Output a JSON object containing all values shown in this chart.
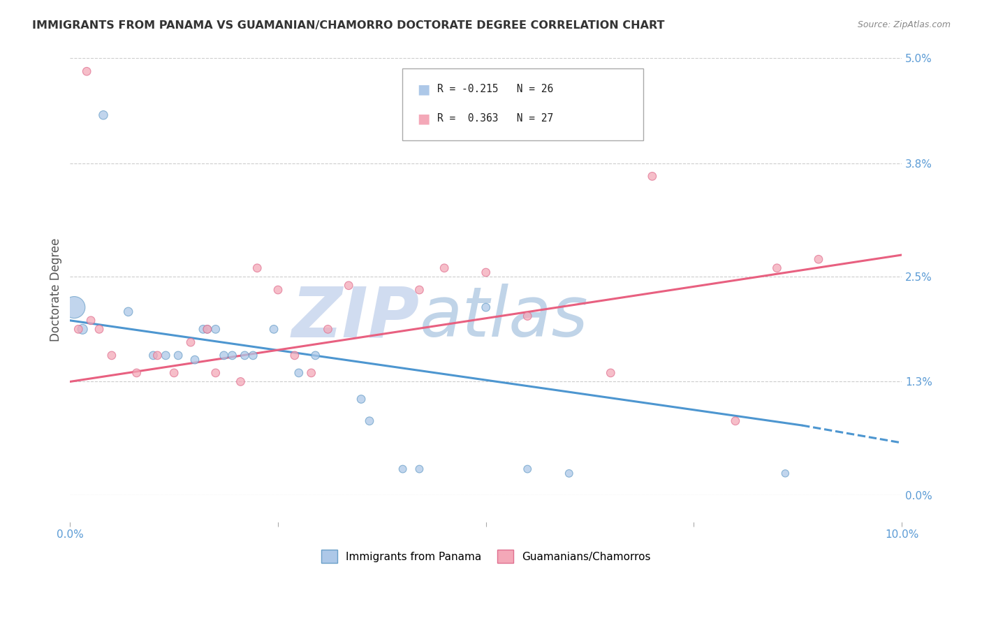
{
  "title": "IMMIGRANTS FROM PANAMA VS GUAMANIAN/CHAMORRO DOCTORATE DEGREE CORRELATION CHART",
  "source": "Source: ZipAtlas.com",
  "ylabel": "Doctorate Degree",
  "y_ticks": [
    0.0,
    1.3,
    2.5,
    3.8,
    5.0
  ],
  "x_lim": [
    0.0,
    10.0
  ],
  "y_lim": [
    -0.3,
    5.0
  ],
  "y_plot_min": 0.0,
  "y_plot_max": 5.0,
  "series1_label": "Immigrants from Panama",
  "series2_label": "Guamanians/Chamorros",
  "series1_color": "#adc8e8",
  "series2_color": "#f4a8b8",
  "series1_edge": "#6a9fc8",
  "series2_edge": "#e07090",
  "blue_line_color": "#4d96d0",
  "pink_line_color": "#e86080",
  "watermark_color": "#ccdaee",
  "background_color": "#ffffff",
  "grid_color": "#cccccc",
  "title_color": "#333333",
  "axis_label_color": "#5b9bd5",
  "legend_label1": "R = -0.215   N = 26",
  "legend_label2": "R =  0.363   N = 27",
  "series1_x": [
    0.05,
    0.15,
    0.4,
    0.7,
    1.0,
    1.15,
    1.3,
    1.5,
    1.6,
    1.65,
    1.75,
    1.85,
    1.95,
    2.1,
    2.2,
    2.45,
    2.75,
    2.95,
    3.5,
    3.6,
    4.0,
    4.2,
    5.0,
    5.5,
    6.0,
    8.6
  ],
  "series1_y": [
    2.15,
    1.9,
    4.35,
    2.1,
    1.6,
    1.6,
    1.6,
    1.55,
    1.9,
    1.9,
    1.9,
    1.6,
    1.6,
    1.6,
    1.6,
    1.9,
    1.4,
    1.6,
    1.1,
    0.85,
    0.3,
    0.3,
    2.15,
    0.3,
    0.25,
    0.25
  ],
  "series1_size": [
    500,
    100,
    80,
    80,
    70,
    70,
    70,
    70,
    70,
    70,
    70,
    70,
    70,
    70,
    70,
    70,
    70,
    70,
    70,
    70,
    60,
    60,
    70,
    60,
    60,
    55
  ],
  "series2_x": [
    0.1,
    0.2,
    0.5,
    0.8,
    1.05,
    1.25,
    1.45,
    1.65,
    1.75,
    2.05,
    2.25,
    2.5,
    2.7,
    2.9,
    3.1,
    3.35,
    4.2,
    4.5,
    5.0,
    5.5,
    6.5,
    7.0,
    8.0,
    8.5,
    9.0,
    0.25,
    0.35
  ],
  "series2_y": [
    1.9,
    4.85,
    1.6,
    1.4,
    1.6,
    1.4,
    1.75,
    1.9,
    1.4,
    1.3,
    2.6,
    2.35,
    1.6,
    1.4,
    1.9,
    2.4,
    2.35,
    2.6,
    2.55,
    2.05,
    1.4,
    3.65,
    0.85,
    2.6,
    2.7,
    2.0,
    1.9
  ],
  "series2_size": [
    70,
    70,
    70,
    70,
    70,
    70,
    70,
    70,
    70,
    70,
    70,
    70,
    70,
    70,
    70,
    70,
    70,
    70,
    70,
    70,
    70,
    70,
    70,
    70,
    70,
    70,
    70
  ],
  "blue_line_x0": 0.0,
  "blue_line_y0": 2.0,
  "blue_line_x1": 8.8,
  "blue_line_y1": 0.8,
  "blue_dash_x0": 8.8,
  "blue_dash_y0": 0.8,
  "blue_dash_x1": 10.0,
  "blue_dash_y1": 0.6,
  "pink_line_x0": 0.0,
  "pink_line_y0": 1.3,
  "pink_line_x1": 10.0,
  "pink_line_y1": 2.75
}
